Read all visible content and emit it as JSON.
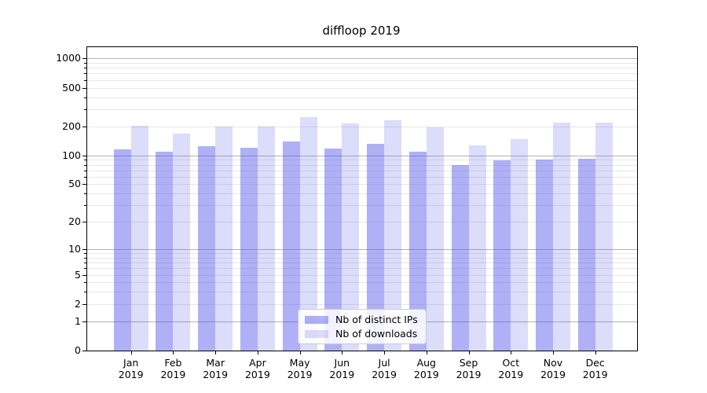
{
  "title": "diffloop 2019",
  "chart_data": {
    "type": "bar",
    "title": "diffloop 2019",
    "categories": [
      "Jan",
      "Feb",
      "Mar",
      "Apr",
      "May",
      "Jun",
      "Jul",
      "Aug",
      "Sep",
      "Oct",
      "Nov",
      "Dec"
    ],
    "category_year": "2019",
    "series": [
      {
        "name": "Nb of distinct IPs",
        "color": "rgba(80,80,235,0.45)",
        "values": [
          116,
          110,
          124,
          121,
          139,
          118,
          132,
          109,
          79,
          89,
          90,
          92
        ]
      },
      {
        "name": "Nb of downloads",
        "color": "rgba(80,80,235,0.20)",
        "values": [
          201,
          169,
          198,
          199,
          250,
          214,
          230,
          195,
          126,
          148,
          219,
          219
        ]
      }
    ],
    "y_scale": "log1p",
    "y_ticks": [
      0,
      1,
      2,
      5,
      10,
      20,
      50,
      100,
      200,
      500,
      1000
    ],
    "y_minor_ticks": [
      3,
      4,
      6,
      7,
      8,
      9,
      30,
      40,
      60,
      70,
      80,
      90,
      300,
      400,
      600,
      700,
      800,
      900
    ],
    "y_major_gridlines": [
      1,
      10,
      100,
      1000
    ],
    "ylim": [
      0,
      1305
    ],
    "grid": true,
    "legend_position": "lower center",
    "legend_labels": [
      "Nb of distinct IPs",
      "Nb of downloads"
    ]
  },
  "colors": {
    "axis": "#000000",
    "grid_minor": "#e7e7e7",
    "grid_major": "#b3b3b3",
    "bar_dark": "rgba(80,80,235,0.45)",
    "bar_light": "rgba(80,80,235,0.20)"
  }
}
